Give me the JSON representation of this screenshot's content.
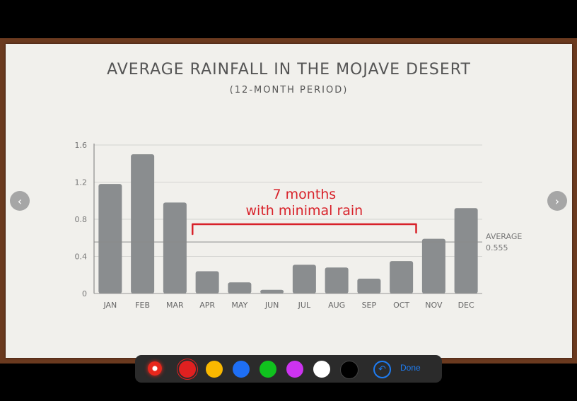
{
  "slide": {
    "title": "AVERAGE RAINFALL IN THE MOJAVE DESERT",
    "subtitle": "(12-MONTH PERIOD)"
  },
  "chart_data": {
    "type": "bar",
    "title": "AVERAGE RAINFALL IN THE MOJAVE DESERT",
    "subtitle": "(12-MONTH PERIOD)",
    "categories": [
      "JAN",
      "FEB",
      "MAR",
      "APR",
      "MAY",
      "JUN",
      "JUL",
      "AUG",
      "SEP",
      "OCT",
      "NOV",
      "DEC"
    ],
    "values": [
      1.18,
      1.5,
      0.98,
      0.24,
      0.12,
      0.04,
      0.31,
      0.28,
      0.16,
      0.35,
      0.59,
      0.92
    ],
    "ylim": [
      0,
      1.6
    ],
    "yticks": [
      {
        "value": 0,
        "label": "0"
      },
      {
        "value": 0.4,
        "label": "0.4"
      },
      {
        "value": 0.8,
        "label": "0.8"
      },
      {
        "value": 1.2,
        "label": "1.2"
      },
      {
        "value": 1.6,
        "label": "1.6"
      }
    ],
    "grid": true,
    "bar_color": "#8a8d8f",
    "reference_line": {
      "value": 0.555,
      "label_line1": "AVERAGE",
      "label_line2": "0.555"
    },
    "annotation": {
      "line1": "7 months",
      "line2": "with minimal rain",
      "color": "#d8222a",
      "from_category": "APR",
      "to_category": "OCT"
    }
  },
  "toolbar": {
    "pen_color": "#e8271c",
    "swatches": [
      {
        "name": "red",
        "color": "#e02020",
        "selected": true
      },
      {
        "name": "yellow",
        "color": "#f9b800"
      },
      {
        "name": "blue",
        "color": "#1e6ff5"
      },
      {
        "name": "green",
        "color": "#10c21e"
      },
      {
        "name": "purple",
        "color": "#cc33f0"
      },
      {
        "name": "white",
        "color": "#ffffff"
      },
      {
        "name": "black",
        "color": "#000000"
      }
    ],
    "undo_icon": "undo-icon",
    "done_label": "Done",
    "accent": "#1e7cf2"
  },
  "nav": {
    "prev_icon": "chevron-left-icon",
    "next_icon": "chevron-right-icon"
  }
}
